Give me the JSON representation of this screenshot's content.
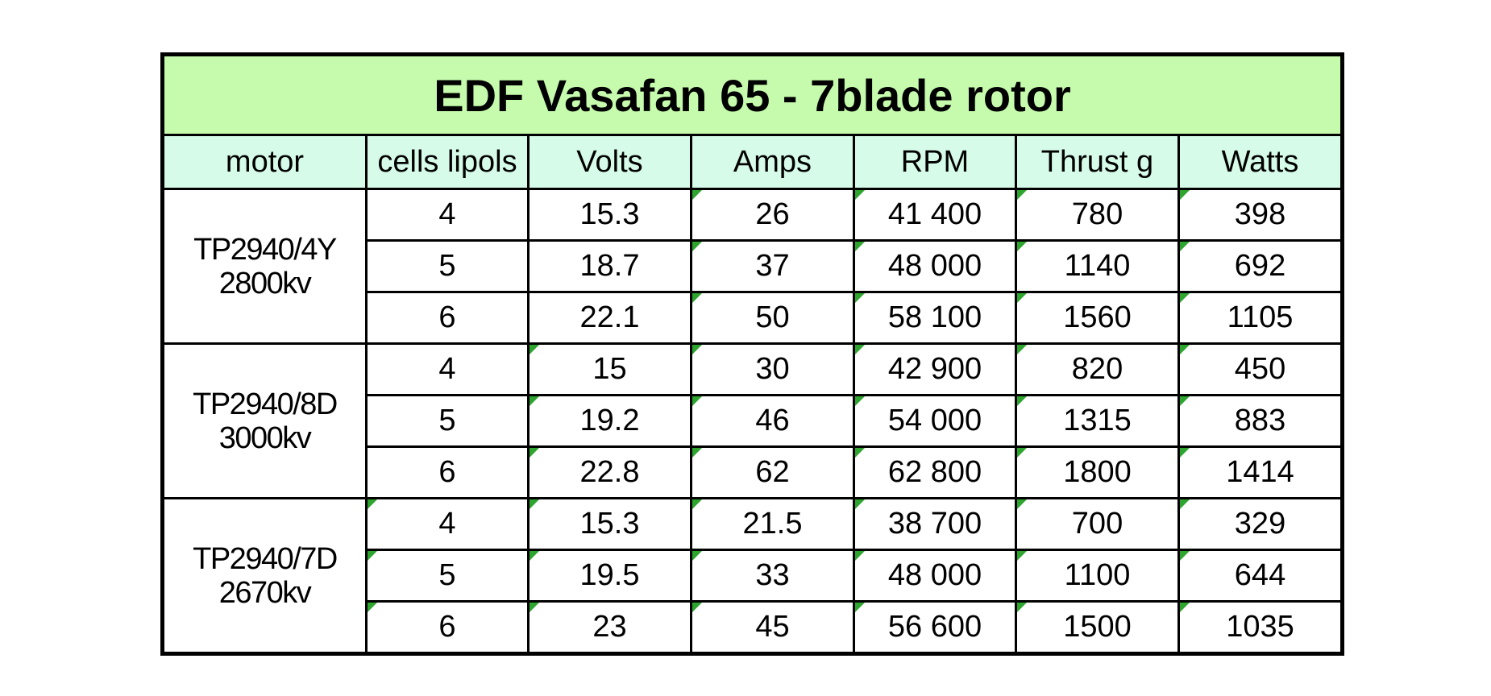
{
  "table": {
    "title": "EDF Vasafan 65 - 7blade rotor",
    "headers": [
      "motor",
      "cells lipols",
      "Volts",
      "Amps",
      "RPM",
      "Thrust g",
      "Watts"
    ],
    "groups": [
      {
        "motor": [
          "TP2940/4Y",
          "2800kv"
        ],
        "rows": [
          [
            "4",
            "15.3",
            "26",
            "41 400",
            "780",
            "398"
          ],
          [
            "5",
            "18.7",
            "37",
            "48 000",
            "1140",
            "692"
          ],
          [
            "6",
            "22.1",
            "50",
            "58 100",
            "1560",
            "1105"
          ]
        ]
      },
      {
        "motor": [
          "TP2940/8D",
          "3000kv"
        ],
        "rows": [
          [
            "4",
            "15",
            "30",
            "42 900",
            "820",
            "450"
          ],
          [
            "5",
            "19.2",
            "46",
            "54 000",
            "1315",
            "883"
          ],
          [
            "6",
            "22.8",
            "62",
            "62 800",
            "1800",
            "1414"
          ]
        ]
      },
      {
        "motor": [
          "TP2940/7D",
          "2670kv"
        ],
        "rows": [
          [
            "4",
            "15.3",
            "21.5",
            "38 700",
            "700",
            "329"
          ],
          [
            "5",
            "19.5",
            "33",
            "48 000",
            "1100",
            "644"
          ],
          [
            "6",
            "23",
            "45",
            "56 600",
            "1500",
            "1035"
          ]
        ]
      }
    ]
  }
}
